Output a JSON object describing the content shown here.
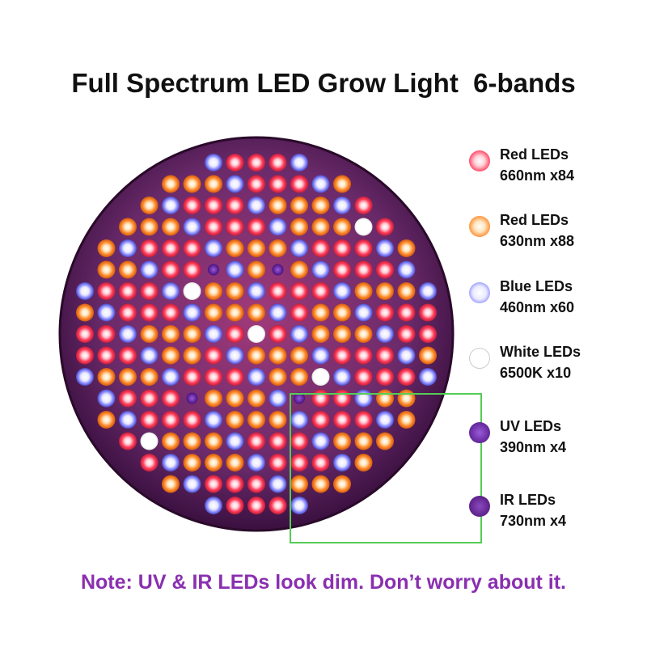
{
  "title": "Full Spectrum LED Grow Light  6-bands",
  "legend": [
    {
      "label": "Red LEDs",
      "spec": "660nm x84",
      "color": "#ff3a5a",
      "glow": "#ffd0d8"
    },
    {
      "label": "Red LEDs",
      "spec": "630nm x88",
      "color": "#ff7a2a",
      "glow": "#ffe0c0"
    },
    {
      "label": "Blue LEDs",
      "spec": "460nm x60",
      "color": "#7a7aff",
      "glow": "#e8e8ff"
    },
    {
      "label": "White LEDs",
      "spec": "6500K x10",
      "color": "#ffffff",
      "glow": "#ffffff"
    },
    {
      "label": "UV LEDs",
      "spec": "390nm x4",
      "color": "#6a1fa8",
      "glow": "#9a5ad8"
    },
    {
      "label": "IR LEDs",
      "spec": "730nm x4",
      "color": "#5a1a90",
      "glow": "#8a4ac0"
    }
  ],
  "note": "Note: UV & IR LEDs look dim. Don’t worry about it.",
  "colors": {
    "panel": "#4a1848",
    "panel_edge": "#2a0a2a",
    "callout": "#55cc55",
    "note": "#8a2fb0"
  }
}
